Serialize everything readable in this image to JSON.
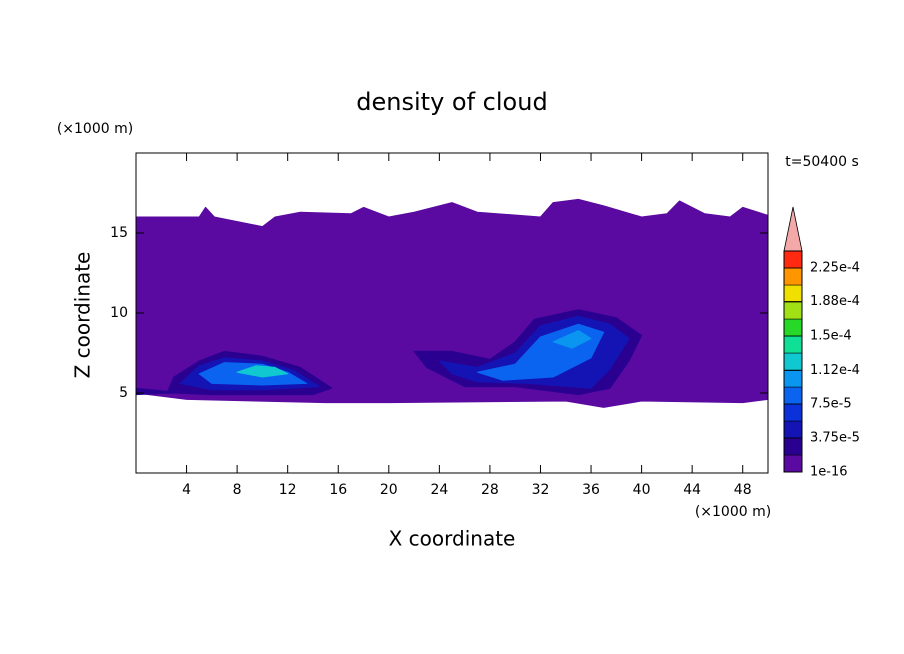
{
  "chart_data": {
    "type": "contour",
    "title": "density of cloud",
    "x_label": "X coordinate",
    "y_label": "Z coordinate",
    "x_unit": "(×1000 m)",
    "y_unit": "(×1000 m)",
    "annotation": "t=50400 s",
    "xlim": [
      0,
      50
    ],
    "ylim": [
      0,
      20
    ],
    "xticks": [
      4,
      8,
      12,
      16,
      20,
      24,
      28,
      32,
      36,
      40,
      44,
      48
    ],
    "yticks": [
      5,
      10,
      15
    ],
    "clim": [
      1e-16,
      0.00024375
    ],
    "colors": [
      "#5a0aa0",
      "#2a0090",
      "#1414b4",
      "#0a32d8",
      "#0a64f0",
      "#0a96f0",
      "#10c8d0",
      "#10e096",
      "#28d828",
      "#a0e014",
      "#f0e000",
      "#ff9600",
      "#ff2a10"
    ],
    "extend_color": "#f4a8a8",
    "cticks": [
      {
        "value": 1e-16,
        "label": "1e-16"
      },
      {
        "value": 3.75e-05,
        "label": "3.75e-5"
      },
      {
        "value": 7.5e-05,
        "label": "7.5e-5"
      },
      {
        "value": 0.000112,
        "label": "1.12e-4"
      },
      {
        "value": 0.00015,
        "label": "1.5e-4"
      },
      {
        "value": 0.000188,
        "label": "1.88e-4"
      },
      {
        "value": 0.000225,
        "label": "2.25e-4"
      }
    ],
    "regions": [
      {
        "value": 5e-06,
        "points": [
          [
            0,
            16
          ],
          [
            5,
            16
          ],
          [
            5.5,
            16.6
          ],
          [
            6.2,
            16
          ],
          [
            10,
            15.4
          ],
          [
            11,
            16
          ],
          [
            13,
            16.3
          ],
          [
            17,
            16.2
          ],
          [
            18,
            16.6
          ],
          [
            20,
            16
          ],
          [
            22,
            16.3
          ],
          [
            25,
            16.9
          ],
          [
            27,
            16.3
          ],
          [
            32,
            16
          ],
          [
            33,
            16.9
          ],
          [
            35,
            17.1
          ],
          [
            37,
            16.7
          ],
          [
            40,
            16
          ],
          [
            42,
            16.2
          ],
          [
            43,
            17
          ],
          [
            45,
            16.2
          ],
          [
            47,
            16
          ],
          [
            48,
            16.6
          ],
          [
            50,
            16.1
          ],
          [
            50,
            4.6
          ],
          [
            48,
            4.4
          ],
          [
            40,
            4.5
          ],
          [
            37,
            4.1
          ],
          [
            34,
            4.5
          ],
          [
            20,
            4.4
          ],
          [
            15,
            4.4
          ],
          [
            4,
            4.6
          ],
          [
            0,
            5
          ]
        ]
      },
      {
        "value": 2.5e-05,
        "points": [
          [
            0,
            5.3
          ],
          [
            2.5,
            5.1
          ],
          [
            3,
            6
          ],
          [
            5,
            7
          ],
          [
            7,
            7.6
          ],
          [
            10,
            7.3
          ],
          [
            13,
            6.6
          ],
          [
            15.5,
            5.3
          ],
          [
            14,
            4.9
          ],
          [
            10,
            4.9
          ],
          [
            6,
            4.9
          ],
          [
            3,
            5
          ],
          [
            0,
            4.9
          ]
        ]
      },
      {
        "value": 2.5e-05,
        "points": [
          [
            22,
            7.6
          ],
          [
            25,
            7.6
          ],
          [
            28,
            7.1
          ],
          [
            30,
            8.2
          ],
          [
            31.5,
            9.6
          ],
          [
            35,
            10.2
          ],
          [
            38,
            9.7
          ],
          [
            40,
            8.6
          ],
          [
            39,
            7
          ],
          [
            37.5,
            5.3
          ],
          [
            35,
            4.9
          ],
          [
            30,
            5.4
          ],
          [
            26,
            5.4
          ],
          [
            23,
            6.6
          ]
        ]
      },
      {
        "value": 5e-05,
        "points": [
          [
            3.5,
            5.6
          ],
          [
            5,
            6.7
          ],
          [
            7,
            7.2
          ],
          [
            10,
            7
          ],
          [
            12.5,
            6.4
          ],
          [
            14.5,
            5.4
          ],
          [
            10,
            5.2
          ],
          [
            6,
            5.2
          ]
        ]
      },
      {
        "value": 5e-05,
        "points": [
          [
            24,
            7
          ],
          [
            27,
            6.6
          ],
          [
            30,
            7.5
          ],
          [
            32,
            9.2
          ],
          [
            35,
            9.8
          ],
          [
            37.5,
            9.3
          ],
          [
            39,
            8.4
          ],
          [
            37.5,
            6.5
          ],
          [
            36,
            5.3
          ],
          [
            31,
            5.6
          ],
          [
            27,
            5.7
          ],
          [
            25,
            6.2
          ]
        ]
      },
      {
        "value": 9e-05,
        "points": [
          [
            5,
            6.2
          ],
          [
            7,
            6.9
          ],
          [
            10,
            6.8
          ],
          [
            12,
            6.3
          ],
          [
            13.5,
            5.6
          ],
          [
            10,
            5.5
          ],
          [
            6,
            5.6
          ]
        ]
      },
      {
        "value": 9e-05,
        "points": [
          [
            27,
            6.3
          ],
          [
            30,
            6.8
          ],
          [
            32,
            8.5
          ],
          [
            35,
            9.3
          ],
          [
            37,
            8.8
          ],
          [
            36,
            7.2
          ],
          [
            33,
            6
          ],
          [
            29,
            5.8
          ]
        ]
      },
      {
        "value": 0.00013,
        "points": [
          [
            8,
            6.3
          ],
          [
            9.5,
            6.7
          ],
          [
            11,
            6.6
          ],
          [
            12,
            6.2
          ],
          [
            10,
            6
          ]
        ]
      },
      {
        "value": 0.00011,
        "points": [
          [
            33,
            8.2
          ],
          [
            35,
            8.9
          ],
          [
            36,
            8.4
          ],
          [
            34.5,
            7.8
          ]
        ]
      }
    ]
  }
}
